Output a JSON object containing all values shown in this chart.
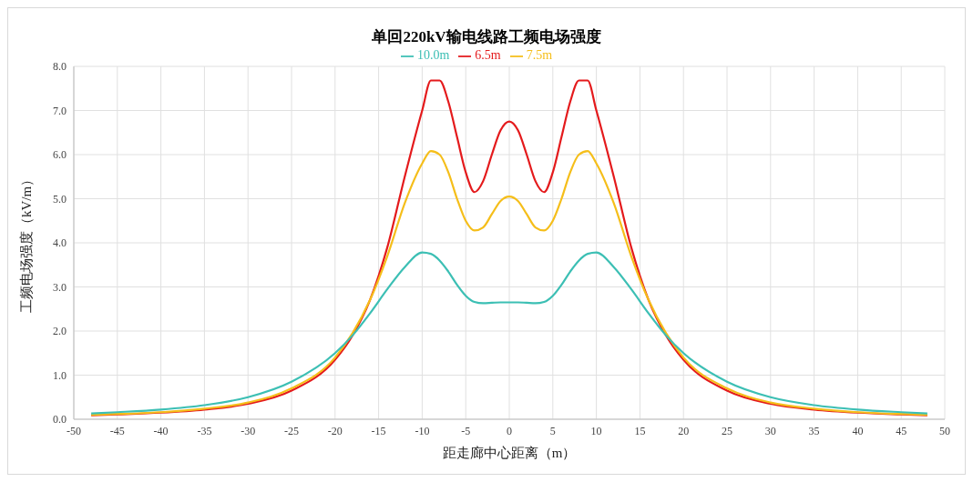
{
  "chart_data": {
    "type": "line",
    "title": "单回220kV输电线路工频电场强度",
    "xlabel": "距走廊中心距离（m）",
    "ylabel": "工频电场强度（kV/m）",
    "x": [
      -48,
      -45,
      -40,
      -35,
      -30,
      -25,
      -20,
      -18,
      -16,
      -14,
      -12,
      -10,
      -9,
      -8,
      -7,
      -6,
      -5,
      -4,
      -3,
      -2,
      -1,
      0,
      1,
      2,
      3,
      4,
      5,
      6,
      7,
      8,
      9,
      10,
      12,
      14,
      16,
      18,
      20,
      25,
      30,
      35,
      40,
      45,
      48
    ],
    "series": [
      {
        "name": "6.5m",
        "color": "#e41a1c",
        "values": [
          0.09,
          0.11,
          0.15,
          0.22,
          0.35,
          0.65,
          1.35,
          1.9,
          2.7,
          3.9,
          5.5,
          7.0,
          7.68,
          7.68,
          7.2,
          6.4,
          5.6,
          5.15,
          5.4,
          6.0,
          6.55,
          6.75,
          6.55,
          6.0,
          5.4,
          5.15,
          5.6,
          6.4,
          7.2,
          7.68,
          7.68,
          7.0,
          5.5,
          3.9,
          2.7,
          1.9,
          1.35,
          0.65,
          0.35,
          0.22,
          0.15,
          0.11,
          0.09
        ]
      },
      {
        "name": "7.5m",
        "color": "#f5be1a",
        "values": [
          0.1,
          0.12,
          0.16,
          0.24,
          0.38,
          0.7,
          1.4,
          1.95,
          2.7,
          3.7,
          4.9,
          5.8,
          6.08,
          6.0,
          5.6,
          5.0,
          4.5,
          4.28,
          4.35,
          4.65,
          4.95,
          5.05,
          4.95,
          4.65,
          4.35,
          4.28,
          4.5,
          5.0,
          5.6,
          6.0,
          6.08,
          5.8,
          4.9,
          3.7,
          2.7,
          1.95,
          1.4,
          0.7,
          0.38,
          0.24,
          0.16,
          0.12,
          0.1
        ]
      },
      {
        "name": "10.0m",
        "color": "#3cbfb4",
        "values": [
          0.13,
          0.16,
          0.22,
          0.32,
          0.5,
          0.85,
          1.5,
          1.9,
          2.4,
          2.95,
          3.45,
          3.78,
          3.75,
          3.6,
          3.35,
          3.05,
          2.8,
          2.66,
          2.63,
          2.64,
          2.65,
          2.65,
          2.65,
          2.64,
          2.63,
          2.66,
          2.8,
          3.05,
          3.35,
          3.6,
          3.75,
          3.78,
          3.45,
          2.95,
          2.4,
          1.9,
          1.5,
          0.85,
          0.5,
          0.32,
          0.22,
          0.16,
          0.13
        ]
      }
    ],
    "xlim": [
      -50,
      50
    ],
    "xticks": [
      -50,
      -45,
      -40,
      -35,
      -30,
      -25,
      -20,
      -15,
      -10,
      -5,
      0,
      5,
      10,
      15,
      20,
      25,
      30,
      35,
      40,
      45,
      50
    ],
    "ylim": [
      0,
      8
    ],
    "yticks": [
      {
        "value": 0,
        "label": "0.0"
      },
      {
        "value": 1,
        "label": "1.0"
      },
      {
        "value": 2,
        "label": "2.0"
      },
      {
        "value": 3,
        "label": "3.0"
      },
      {
        "value": 4,
        "label": "4.0"
      },
      {
        "value": 5,
        "label": "5.0"
      },
      {
        "value": 6,
        "label": "6.0"
      },
      {
        "value": 7,
        "label": "7.0"
      },
      {
        "value": 8,
        "label": "8.0"
      }
    ],
    "grid": true,
    "legend": "top",
    "marker": "none",
    "line_style": "solid"
  }
}
